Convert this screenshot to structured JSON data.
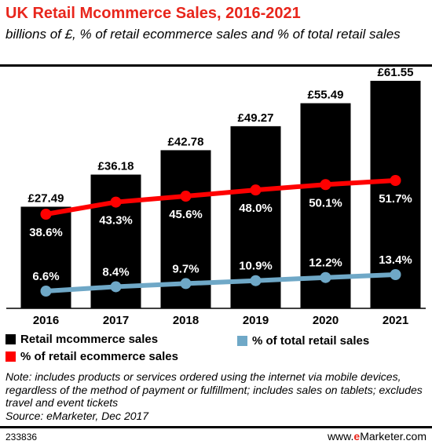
{
  "title": "UK Retail Mcommerce Sales, 2016-2021",
  "subtitle": "billions of £, % of retail ecommerce sales and % of total retail sales",
  "chart_data": {
    "type": "bar",
    "categories": [
      "2016",
      "2017",
      "2018",
      "2019",
      "2020",
      "2021"
    ],
    "series": [
      {
        "name": "Retail mcommerce sales",
        "kind": "bar",
        "values": [
          27.49,
          36.18,
          42.78,
          49.27,
          55.49,
          61.55
        ],
        "labels": [
          "£27.49",
          "£36.18",
          "£42.78",
          "£49.27",
          "£55.49",
          "£61.55"
        ],
        "color": "#000000"
      },
      {
        "name": "% of retail ecommerce sales",
        "kind": "line",
        "values": [
          38.6,
          43.3,
          45.6,
          48.0,
          50.1,
          51.7
        ],
        "labels": [
          "38.6%",
          "43.3%",
          "45.6%",
          "48.0%",
          "50.1%",
          "51.7%"
        ],
        "color": "#ff0000"
      },
      {
        "name": "% of total retail sales",
        "kind": "line",
        "values": [
          6.6,
          8.4,
          9.7,
          10.9,
          12.2,
          13.4
        ],
        "labels": [
          "6.6%",
          "8.4%",
          "9.7%",
          "10.9%",
          "12.2%",
          "13.4%"
        ],
        "color": "#6fa8c7"
      }
    ],
    "legend": "bottom"
  },
  "notes": {
    "note": "Note: includes products or services ordered using the internet via mobile devices, regardless of the method of payment or fulfillment; includes sales on tablets; excludes travel and event tickets",
    "source": "Source: eMarketer, Dec 2017"
  },
  "footer": {
    "chart_id": "233836",
    "brand_prefix": "www.",
    "brand_e": "e",
    "brand_suffix": "Marketer.com"
  }
}
